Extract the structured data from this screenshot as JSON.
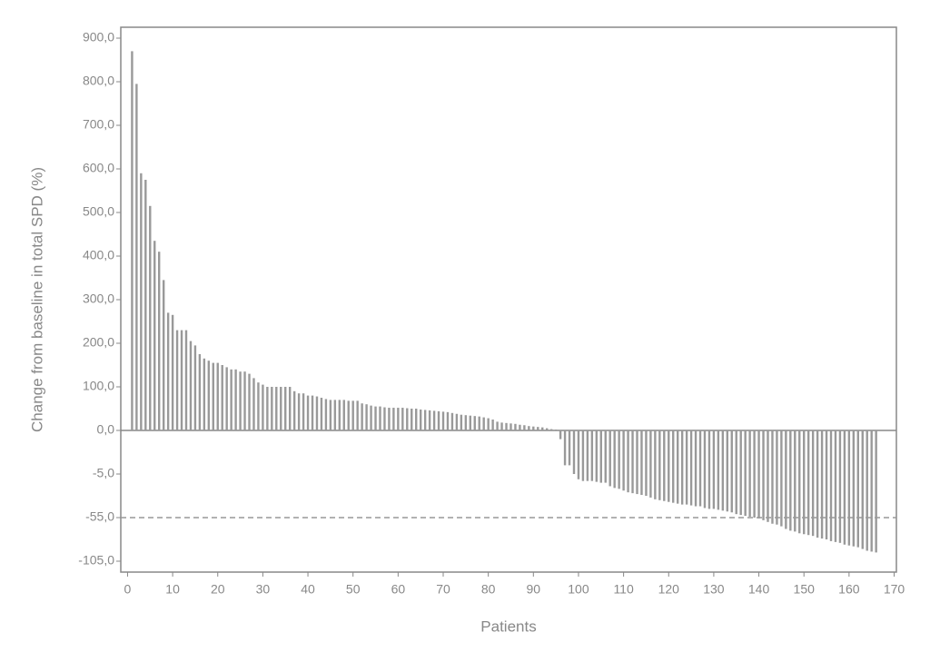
{
  "chart_data": {
    "type": "bar",
    "x_label": "Patients",
    "y_label": "Change from baseline in total SPD (%)",
    "color": "#999999",
    "xlim": [
      -1.5,
      170.5
    ],
    "xticks": [
      0,
      10,
      20,
      30,
      40,
      50,
      60,
      70,
      80,
      90,
      100,
      110,
      120,
      130,
      140,
      150,
      160,
      170
    ],
    "ylim": [
      -117.5,
      925
    ],
    "yticks": [
      {
        "value": 900,
        "label": "900,0"
      },
      {
        "value": 800,
        "label": "800,0"
      },
      {
        "value": 700,
        "label": "700,0"
      },
      {
        "value": 600,
        "label": "600,0"
      },
      {
        "value": 500,
        "label": "500,0"
      },
      {
        "value": 400,
        "label": "400,0"
      },
      {
        "value": 300,
        "label": "300,0"
      },
      {
        "value": 200,
        "label": "200,0"
      },
      {
        "value": 100,
        "label": "100,0"
      },
      {
        "value": 0,
        "label": "0,0"
      },
      {
        "value": -5,
        "label": "-5,0"
      },
      {
        "value": -55,
        "label": "-55,0"
      },
      {
        "value": -105,
        "label": "-105,0"
      }
    ],
    "reference_line": -55,
    "x": [
      1,
      2,
      3,
      4,
      5,
      6,
      7,
      8,
      9,
      10,
      11,
      12,
      13,
      14,
      15,
      16,
      17,
      18,
      19,
      20,
      21,
      22,
      23,
      24,
      25,
      26,
      27,
      28,
      29,
      30,
      31,
      32,
      33,
      34,
      35,
      36,
      37,
      38,
      39,
      40,
      41,
      42,
      43,
      44,
      45,
      46,
      47,
      48,
      49,
      50,
      51,
      52,
      53,
      54,
      55,
      56,
      57,
      58,
      59,
      60,
      61,
      62,
      63,
      64,
      65,
      66,
      67,
      68,
      69,
      70,
      71,
      72,
      73,
      74,
      75,
      76,
      77,
      78,
      79,
      80,
      81,
      82,
      83,
      84,
      85,
      86,
      87,
      88,
      89,
      90,
      91,
      92,
      93,
      94,
      95,
      96,
      97,
      98,
      99,
      100,
      101,
      102,
      103,
      104,
      105,
      106,
      107,
      108,
      109,
      110,
      111,
      112,
      113,
      114,
      115,
      116,
      117,
      118,
      119,
      120,
      121,
      122,
      123,
      124,
      125,
      126,
      127,
      128,
      129,
      130,
      131,
      132,
      133,
      134,
      135,
      136,
      137,
      138,
      139,
      140,
      141,
      142,
      143,
      144,
      145,
      146,
      147,
      148,
      149,
      150,
      151,
      152,
      153,
      154,
      155,
      156,
      157,
      158,
      159,
      160,
      161,
      162,
      163,
      164,
      165,
      166
    ],
    "values": [
      870,
      795,
      590,
      575,
      515,
      435,
      410,
      345,
      270,
      265,
      230,
      230,
      230,
      205,
      195,
      175,
      165,
      160,
      155,
      155,
      150,
      145,
      140,
      140,
      135,
      135,
      130,
      120,
      110,
      105,
      100,
      100,
      100,
      100,
      100,
      100,
      90,
      85,
      85,
      80,
      80,
      78,
      75,
      72,
      70,
      70,
      70,
      70,
      68,
      68,
      68,
      62,
      60,
      57,
      55,
      55,
      53,
      52,
      52,
      52,
      52,
      51,
      50,
      50,
      48,
      47,
      46,
      45,
      44,
      43,
      42,
      40,
      38,
      36,
      35,
      34,
      33,
      32,
      30,
      28,
      25,
      20,
      18,
      17,
      16,
      15,
      13,
      12,
      10,
      9,
      8,
      7,
      5,
      3,
      2,
      -1,
      -4,
      -4,
      -5,
      -11,
      -13,
      -13,
      -13,
      -14,
      -15,
      -15,
      -19,
      -21,
      -22,
      -24,
      -26,
      -27,
      -28,
      -29,
      -30,
      -32,
      -34,
      -35,
      -36,
      -37,
      -38,
      -39,
      -40,
      -40,
      -41,
      -42,
      -42,
      -44,
      -45,
      -45,
      -46,
      -47,
      -48,
      -49,
      -51,
      -52,
      -53,
      -54,
      -55,
      -56,
      -58,
      -60,
      -62,
      -63,
      -65,
      -68,
      -70,
      -71,
      -73,
      -74,
      -75,
      -76,
      -78,
      -79,
      -80,
      -82,
      -83,
      -84,
      -86,
      -87,
      -88,
      -89,
      -91,
      -93,
      -94,
      -95
    ]
  }
}
